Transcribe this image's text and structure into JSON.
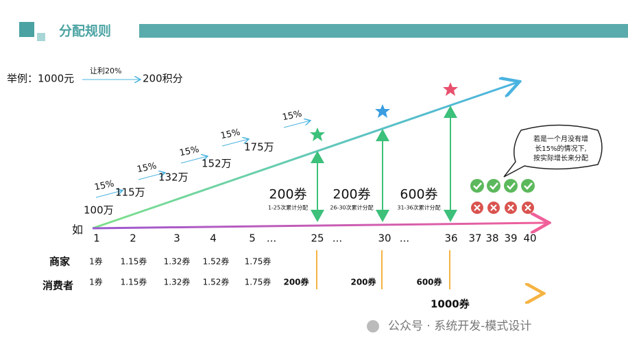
{
  "header": {
    "title": "分配规则"
  },
  "example": {
    "left": "举例：1000元",
    "arrow_label": "让利20%",
    "right": "200积分"
  },
  "growth": {
    "rates": [
      "15%",
      "15%",
      "15%",
      "15%",
      "15%"
    ],
    "amounts": [
      "100万",
      "115万",
      "132万",
      "152万",
      "175万"
    ]
  },
  "axis": {
    "prefix": "如",
    "ticks": [
      "1",
      "2",
      "3",
      "4",
      "5",
      "...",
      "25",
      "...",
      "30",
      "...",
      "36",
      "37",
      "38",
      "39",
      "40"
    ]
  },
  "allocations": [
    {
      "amount": "200券",
      "note": "1-25次累计分配"
    },
    {
      "amount": "200券",
      "note": "26-30次累计分配"
    },
    {
      "amount": "600券",
      "note": "31-36次累计分配"
    }
  ],
  "callout": {
    "lines": [
      "若是一个月没有增",
      "长15%的情况下,",
      "按实际增长来分配"
    ]
  },
  "table": {
    "rows": [
      {
        "label": "商家",
        "cells": [
          "1券",
          "1.15券",
          "1.32券",
          "1.52券",
          "1.75券"
        ]
      },
      {
        "label": "消费者",
        "cells": [
          "1券",
          "1.15券",
          "1.32券",
          "1.52券",
          "1.75券",
          "200券",
          "200券",
          "600券"
        ]
      }
    ]
  },
  "total": "1000券",
  "watermark": "公众号 · 系统开发-模式设计"
}
